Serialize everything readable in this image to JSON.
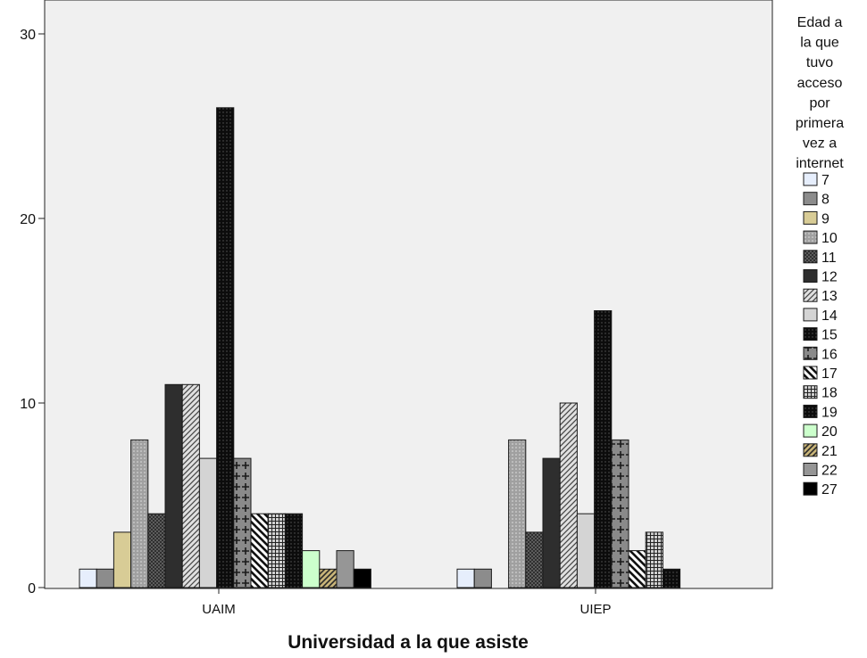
{
  "chart_data": {
    "type": "bar",
    "title": "",
    "xlabel": "Universidad a la que asiste",
    "ylabel": "",
    "ylim": [
      0,
      30
    ],
    "yticks": [
      "0",
      "10",
      "20",
      "30"
    ],
    "categories": [
      "UAIM",
      "UIEP"
    ],
    "legend_title": [
      "Edad a",
      "la que",
      "tuvo",
      "acceso",
      "por",
      "primera",
      "vez a",
      "internet"
    ],
    "legend_position": "right",
    "grid": false,
    "series": [
      {
        "name": "7",
        "values": [
          1,
          1
        ],
        "color": "#e6eefc",
        "pattern": "solid"
      },
      {
        "name": "8",
        "values": [
          1,
          1
        ],
        "color": "#8c8c8c",
        "pattern": "solid"
      },
      {
        "name": "9",
        "values": [
          3,
          0
        ],
        "color": "#d8cc96",
        "pattern": "solid"
      },
      {
        "name": "10",
        "values": [
          8,
          8
        ],
        "color": "#a0a0a0",
        "pattern": "dots"
      },
      {
        "name": "11",
        "values": [
          4,
          3
        ],
        "color": "#6e6e6e",
        "pattern": "crosshatch"
      },
      {
        "name": "12",
        "values": [
          11,
          7
        ],
        "color": "#2e2e2e",
        "pattern": "solid"
      },
      {
        "name": "13",
        "values": [
          11,
          10
        ],
        "color": "#c8c8c8",
        "pattern": "diag"
      },
      {
        "name": "14",
        "values": [
          7,
          4
        ],
        "color": "#d4d4d4",
        "pattern": "solid"
      },
      {
        "name": "15",
        "values": [
          26,
          15
        ],
        "color": "#080808",
        "pattern": "dots-light"
      },
      {
        "name": "16",
        "values": [
          7,
          8
        ],
        "color": "#8a8a8a",
        "pattern": "plus"
      },
      {
        "name": "17",
        "values": [
          4,
          2
        ],
        "color": "#ffffff",
        "pattern": "diag-back-thick"
      },
      {
        "name": "18",
        "values": [
          4,
          3
        ],
        "color": "#999999",
        "pattern": "grid"
      },
      {
        "name": "19",
        "values": [
          4,
          1
        ],
        "color": "#1c1c1c",
        "pattern": "dots-light"
      },
      {
        "name": "20",
        "values": [
          2,
          0
        ],
        "color": "#ccffcc",
        "pattern": "solid"
      },
      {
        "name": "21",
        "values": [
          1,
          0
        ],
        "color": "#c8b478",
        "pattern": "diag-thick"
      },
      {
        "name": "22",
        "values": [
          2,
          0
        ],
        "color": "#969696",
        "pattern": "solid"
      },
      {
        "name": "27",
        "values": [
          1,
          0
        ],
        "color": "#000000",
        "pattern": "solid"
      }
    ]
  }
}
